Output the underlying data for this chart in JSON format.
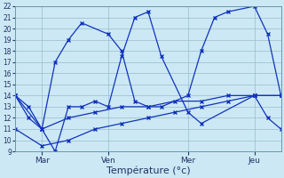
{
  "background_color": "#cce8f4",
  "grid_color": "#99bbcc",
  "line_color": "#1133bb",
  "xlabel": "Température (°c)",
  "xlabel_fontsize": 8,
  "ylim_min": 9,
  "ylim_max": 22,
  "yticks": [
    9,
    10,
    11,
    12,
    13,
    14,
    15,
    16,
    17,
    18,
    19,
    20,
    21,
    22
  ],
  "xtick_labels": [
    "Mar",
    "Ven",
    "Mer",
    "Jeu"
  ],
  "xtick_positions": [
    2,
    7,
    13,
    18
  ],
  "xlim_min": 0,
  "xlim_max": 20,
  "line_A_x": [
    0,
    1,
    2,
    3,
    4,
    5,
    7,
    8,
    9,
    10,
    11,
    13,
    14,
    15,
    16,
    18,
    19,
    20
  ],
  "line_A_y": [
    14,
    13,
    11,
    17,
    19,
    20.5,
    19.5,
    18,
    13.5,
    13,
    13,
    14,
    18,
    21,
    21.5,
    22,
    19.5,
    14
  ],
  "line_B_x": [
    0,
    1,
    2,
    3,
    4,
    5,
    6,
    7,
    8,
    9,
    10,
    11,
    13,
    14,
    18,
    19,
    20
  ],
  "line_B_y": [
    14,
    12,
    11,
    9,
    13,
    13,
    13.5,
    13,
    17.5,
    21,
    21.5,
    17.5,
    12.5,
    11.5,
    14,
    12,
    11
  ],
  "line_C_x": [
    0,
    2,
    4,
    6,
    8,
    10,
    12,
    14,
    16,
    18,
    20
  ],
  "line_C_y": [
    14,
    11,
    12,
    12.5,
    13,
    13,
    13.5,
    13.5,
    14,
    14,
    14
  ],
  "line_D_x": [
    0,
    2,
    4,
    6,
    8,
    10,
    12,
    14,
    16,
    18,
    20
  ],
  "line_D_y": [
    11,
    9.5,
    10,
    11,
    11.5,
    12,
    12.5,
    13,
    13.5,
    14,
    14
  ]
}
